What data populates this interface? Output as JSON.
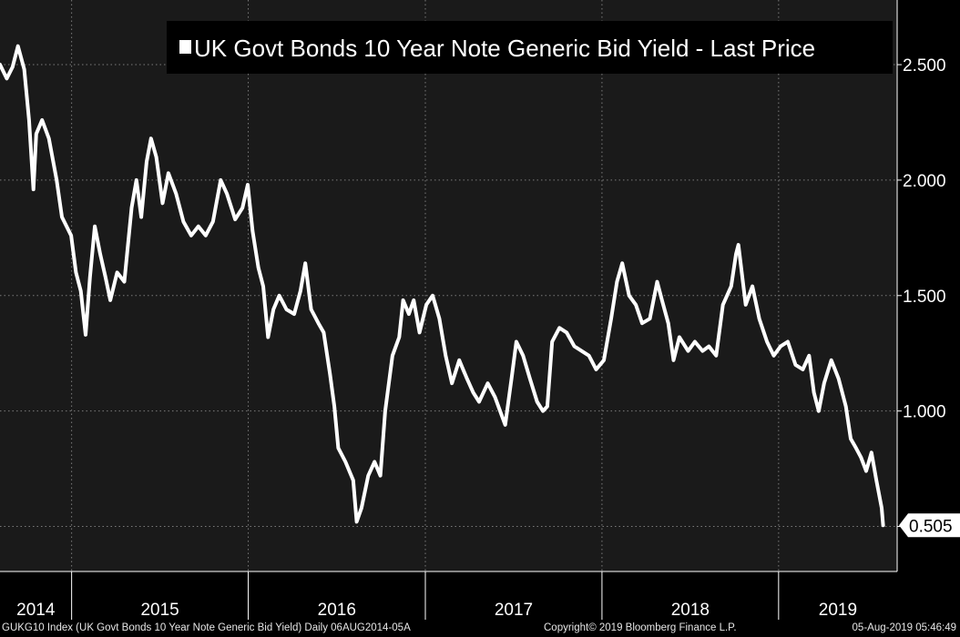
{
  "chart_data": {
    "type": "line",
    "title": "UK Govt Bonds 10 Year Note Generic Bid Yield - Last Price",
    "legend_position": "top-right",
    "grid": true,
    "ylim": [
      0.305,
      2.78
    ],
    "y_ticks": [
      "0.500",
      "1.000",
      "1.500",
      "2.000",
      "2.500"
    ],
    "x_ticks": [
      "2014",
      "2015",
      "2016",
      "2017",
      "2018",
      "2019"
    ],
    "last_value_label": "0.505",
    "xlim": [
      "2014-08-06",
      "2019-09-03"
    ],
    "series": [
      {
        "name": "UK Govt Bonds 10 Year Note Generic Bid Yield - Last Price",
        "color": "#ffffff",
        "points": [
          [
            "2014-08-06",
            2.5
          ],
          [
            "2014-08-20",
            2.44
          ],
          [
            "2014-09-01",
            2.49
          ],
          [
            "2014-09-12",
            2.58
          ],
          [
            "2014-09-25",
            2.48
          ],
          [
            "2014-10-05",
            2.26
          ],
          [
            "2014-10-14",
            1.96
          ],
          [
            "2014-10-20",
            2.2
          ],
          [
            "2014-11-01",
            2.26
          ],
          [
            "2014-11-15",
            2.18
          ],
          [
            "2014-12-01",
            2.0
          ],
          [
            "2014-12-12",
            1.84
          ],
          [
            "2014-12-31",
            1.76
          ],
          [
            "2015-01-10",
            1.6
          ],
          [
            "2015-01-20",
            1.52
          ],
          [
            "2015-01-30",
            1.33
          ],
          [
            "2015-02-08",
            1.58
          ],
          [
            "2015-02-18",
            1.8
          ],
          [
            "2015-03-01",
            1.68
          ],
          [
            "2015-03-12",
            1.58
          ],
          [
            "2015-03-22",
            1.48
          ],
          [
            "2015-04-05",
            1.6
          ],
          [
            "2015-04-20",
            1.56
          ],
          [
            "2015-05-05",
            1.88
          ],
          [
            "2015-05-15",
            2.0
          ],
          [
            "2015-05-25",
            1.84
          ],
          [
            "2015-06-05",
            2.08
          ],
          [
            "2015-06-14",
            2.18
          ],
          [
            "2015-06-25",
            2.1
          ],
          [
            "2015-07-08",
            1.9
          ],
          [
            "2015-07-20",
            2.03
          ],
          [
            "2015-08-05",
            1.94
          ],
          [
            "2015-08-20",
            1.82
          ],
          [
            "2015-09-05",
            1.76
          ],
          [
            "2015-09-20",
            1.8
          ],
          [
            "2015-10-05",
            1.76
          ],
          [
            "2015-10-20",
            1.82
          ],
          [
            "2015-11-05",
            2.0
          ],
          [
            "2015-11-18",
            1.94
          ],
          [
            "2015-12-05",
            1.83
          ],
          [
            "2015-12-20",
            1.88
          ],
          [
            "2015-12-31",
            1.98
          ],
          [
            "2016-01-10",
            1.78
          ],
          [
            "2016-01-22",
            1.62
          ],
          [
            "2016-02-01",
            1.54
          ],
          [
            "2016-02-11",
            1.32
          ],
          [
            "2016-02-22",
            1.44
          ],
          [
            "2016-03-05",
            1.5
          ],
          [
            "2016-03-20",
            1.44
          ],
          [
            "2016-04-05",
            1.42
          ],
          [
            "2016-04-18",
            1.52
          ],
          [
            "2016-04-28",
            1.64
          ],
          [
            "2016-05-10",
            1.44
          ],
          [
            "2016-05-25",
            1.38
          ],
          [
            "2016-06-05",
            1.34
          ],
          [
            "2016-06-18",
            1.16
          ],
          [
            "2016-06-27",
            1.02
          ],
          [
            "2016-07-05",
            0.84
          ],
          [
            "2016-07-20",
            0.78
          ],
          [
            "2016-08-05",
            0.7
          ],
          [
            "2016-08-12",
            0.52
          ],
          [
            "2016-08-22",
            0.58
          ],
          [
            "2016-09-05",
            0.72
          ],
          [
            "2016-09-18",
            0.78
          ],
          [
            "2016-09-30",
            0.72
          ],
          [
            "2016-10-10",
            1.0
          ],
          [
            "2016-10-25",
            1.24
          ],
          [
            "2016-11-08",
            1.32
          ],
          [
            "2016-11-16",
            1.48
          ],
          [
            "2016-11-28",
            1.42
          ],
          [
            "2016-12-08",
            1.48
          ],
          [
            "2016-12-20",
            1.34
          ],
          [
            "2017-01-03",
            1.46
          ],
          [
            "2017-01-16",
            1.5
          ],
          [
            "2017-01-30",
            1.4
          ],
          [
            "2017-02-12",
            1.24
          ],
          [
            "2017-02-25",
            1.12
          ],
          [
            "2017-03-12",
            1.22
          ],
          [
            "2017-03-28",
            1.14
          ],
          [
            "2017-04-10",
            1.08
          ],
          [
            "2017-04-22",
            1.04
          ],
          [
            "2017-05-10",
            1.12
          ],
          [
            "2017-05-25",
            1.06
          ],
          [
            "2017-06-08",
            0.98
          ],
          [
            "2017-06-15",
            0.94
          ],
          [
            "2017-06-28",
            1.14
          ],
          [
            "2017-07-08",
            1.3
          ],
          [
            "2017-07-22",
            1.24
          ],
          [
            "2017-08-05",
            1.14
          ],
          [
            "2017-08-20",
            1.04
          ],
          [
            "2017-09-01",
            1.0
          ],
          [
            "2017-09-10",
            1.02
          ],
          [
            "2017-09-20",
            1.3
          ],
          [
            "2017-10-05",
            1.36
          ],
          [
            "2017-10-20",
            1.34
          ],
          [
            "2017-11-05",
            1.28
          ],
          [
            "2017-11-20",
            1.26
          ],
          [
            "2017-12-05",
            1.24
          ],
          [
            "2017-12-20",
            1.18
          ],
          [
            "2018-01-05",
            1.22
          ],
          [
            "2018-01-20",
            1.4
          ],
          [
            "2018-02-01",
            1.56
          ],
          [
            "2018-02-12",
            1.64
          ],
          [
            "2018-02-26",
            1.5
          ],
          [
            "2018-03-12",
            1.46
          ],
          [
            "2018-03-25",
            1.38
          ],
          [
            "2018-04-10",
            1.4
          ],
          [
            "2018-04-25",
            1.56
          ],
          [
            "2018-05-05",
            1.48
          ],
          [
            "2018-05-18",
            1.38
          ],
          [
            "2018-05-29",
            1.22
          ],
          [
            "2018-06-10",
            1.32
          ],
          [
            "2018-06-28",
            1.26
          ],
          [
            "2018-07-12",
            1.3
          ],
          [
            "2018-07-28",
            1.26
          ],
          [
            "2018-08-10",
            1.28
          ],
          [
            "2018-08-25",
            1.24
          ],
          [
            "2018-09-08",
            1.46
          ],
          [
            "2018-09-25",
            1.54
          ],
          [
            "2018-10-05",
            1.68
          ],
          [
            "2018-10-10",
            1.72
          ],
          [
            "2018-10-25",
            1.46
          ],
          [
            "2018-11-08",
            1.54
          ],
          [
            "2018-11-22",
            1.4
          ],
          [
            "2018-12-08",
            1.3
          ],
          [
            "2018-12-22",
            1.24
          ],
          [
            "2019-01-05",
            1.28
          ],
          [
            "2019-01-20",
            1.3
          ],
          [
            "2019-02-05",
            1.2
          ],
          [
            "2019-02-20",
            1.18
          ],
          [
            "2019-03-05",
            1.24
          ],
          [
            "2019-03-15",
            1.08
          ],
          [
            "2019-03-25",
            1.0
          ],
          [
            "2019-04-05",
            1.12
          ],
          [
            "2019-04-20",
            1.22
          ],
          [
            "2019-05-05",
            1.14
          ],
          [
            "2019-05-20",
            1.02
          ],
          [
            "2019-05-30",
            0.88
          ],
          [
            "2019-06-10",
            0.84
          ],
          [
            "2019-06-20",
            0.8
          ],
          [
            "2019-07-01",
            0.74
          ],
          [
            "2019-07-12",
            0.82
          ],
          [
            "2019-07-22",
            0.7
          ],
          [
            "2019-08-02",
            0.58
          ],
          [
            "2019-08-05",
            0.505
          ]
        ]
      }
    ]
  },
  "footer": {
    "left_text": "GUKG10 Index (UK Govt Bonds 10 Year Note Generic Bid Yield)  Daily 06AUG2014-05A",
    "center_text": "Copyright© 2019 Bloomberg Finance L.P.",
    "right_text": "05-Aug-2019 05:46:49"
  },
  "colors": {
    "background": "#000000",
    "plot_background": "#1a1a1a",
    "grid": "#7a7a7a",
    "line": "#ffffff",
    "text": "#ffffff"
  }
}
